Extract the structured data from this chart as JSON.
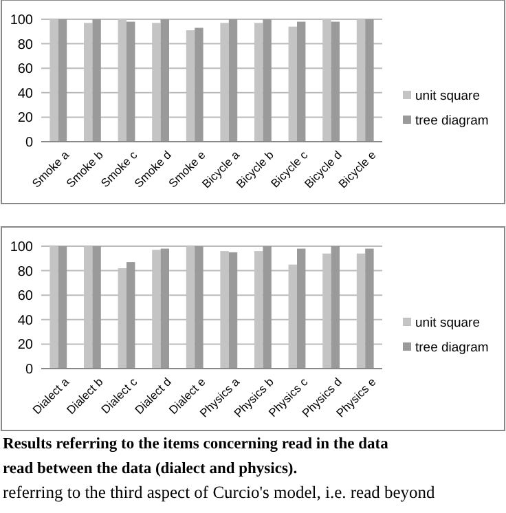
{
  "chart_data": [
    {
      "type": "bar",
      "categories": [
        "Smoke a",
        "Smoke b",
        "Smoke c",
        "Smoke d",
        "Smoke e",
        "Bicycle a",
        "Bicycle b",
        "Bicycle c",
        "Bicycle d",
        "Bicycle e"
      ],
      "series": [
        {
          "name": "unit square",
          "color": "#c4c4c4",
          "values": [
            100,
            97,
            100,
            97,
            91,
            97,
            97,
            94,
            100,
            100
          ]
        },
        {
          "name": "tree diagram",
          "color": "#9a9a9a",
          "values": [
            100,
            100,
            98,
            100,
            93,
            100,
            100,
            98,
            98,
            100
          ]
        }
      ],
      "ylim": [
        0,
        100
      ],
      "yticks": [
        0,
        20,
        40,
        60,
        80,
        100
      ],
      "grid": "y",
      "legend": "right"
    },
    {
      "type": "bar",
      "categories": [
        "Dialect a",
        "Dialect b",
        "Dialect c",
        "Dialect d",
        "Dialect e",
        "Physics a",
        "Physics b",
        "Physics c",
        "Physics d",
        "Physics e"
      ],
      "series": [
        {
          "name": "unit square",
          "color": "#c4c4c4",
          "values": [
            100,
            100,
            82,
            97,
            100,
            96,
            96,
            85,
            94,
            94
          ]
        },
        {
          "name": "tree diagram",
          "color": "#9a9a9a",
          "values": [
            100,
            100,
            87,
            98,
            100,
            95,
            100,
            98,
            100,
            98
          ]
        }
      ],
      "ylim": [
        0,
        100
      ],
      "yticks": [
        0,
        20,
        40,
        60,
        80,
        100
      ],
      "grid": "y",
      "legend": "right",
      "annotations": [
        "Results referring to the items concerning read in the data",
        "read between the data (dialect and physics).",
        "referring to the third aspect of Curcio's model, i.e. read beyond"
      ]
    }
  ]
}
